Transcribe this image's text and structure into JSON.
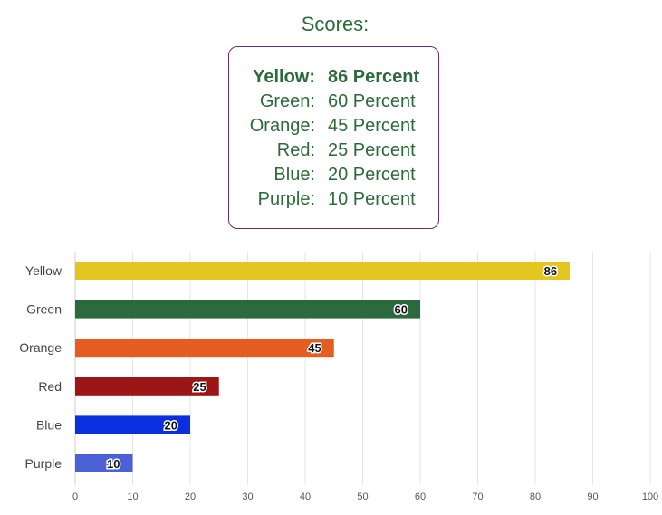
{
  "scores": {
    "title": "Scores:",
    "items": [
      {
        "name": "Yellow:",
        "value": "86 Percent"
      },
      {
        "name": "Green:",
        "value": "60 Percent"
      },
      {
        "name": "Orange:",
        "value": "45 Percent"
      },
      {
        "name": "Red:",
        "value": "25 Percent"
      },
      {
        "name": "Blue:",
        "value": "20 Percent"
      },
      {
        "name": "Purple:",
        "value": "10 Percent"
      }
    ]
  },
  "chart_data": {
    "type": "bar",
    "orientation": "horizontal",
    "categories": [
      "Yellow",
      "Green",
      "Orange",
      "Red",
      "Blue",
      "Purple"
    ],
    "values": [
      86,
      60,
      45,
      25,
      20,
      10
    ],
    "colors": [
      "#e3c620",
      "#2a6a3e",
      "#e35e20",
      "#9c1616",
      "#0a2fdc",
      "#4a62d6"
    ],
    "xlim": [
      0,
      100
    ],
    "xticks": [
      0,
      10,
      20,
      30,
      40,
      50,
      60,
      70,
      80,
      90,
      100
    ],
    "grid": true,
    "data_labels": true,
    "title": "",
    "xlabel": "",
    "ylabel": ""
  }
}
